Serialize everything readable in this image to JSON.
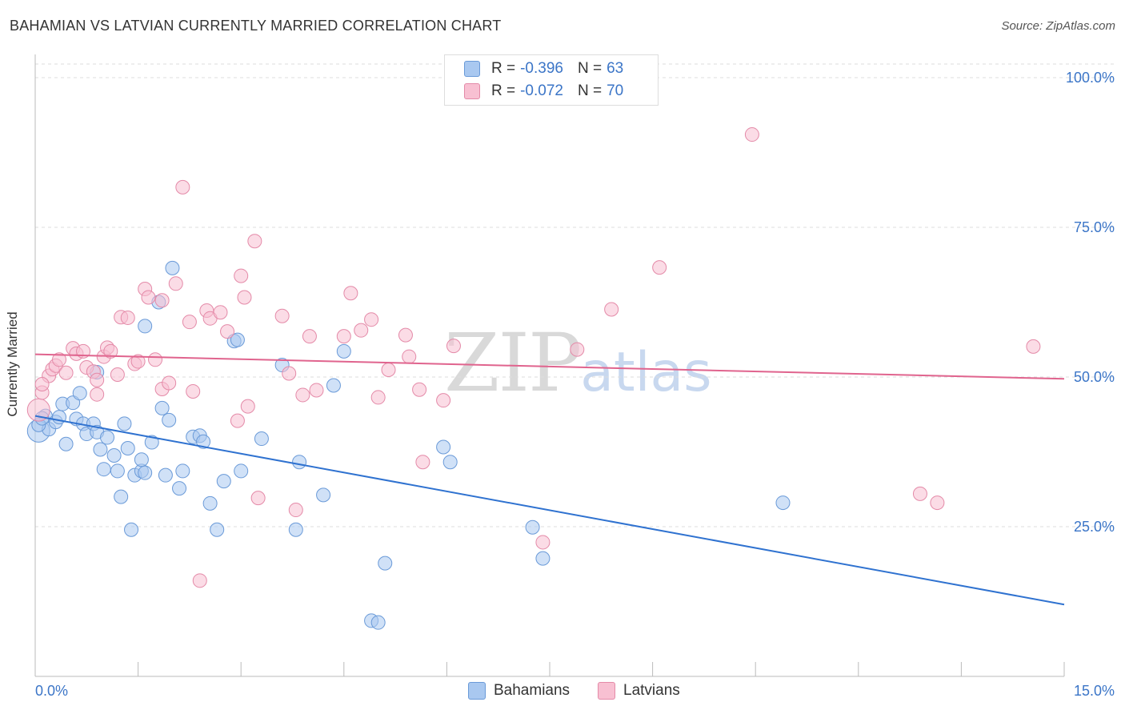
{
  "header": {
    "title": "BAHAMIAN VS LATVIAN CURRENTLY MARRIED CORRELATION CHART",
    "source": "Source: ZipAtlas.com"
  },
  "watermark": {
    "zip": "ZIP",
    "atlas": "atlas"
  },
  "legend": {
    "rows": [
      {
        "r_label": "R =",
        "r_value": "-0.396",
        "n_label": "N =",
        "n_value": "63",
        "color": "#a9c8f0",
        "border": "#6a9ad8"
      },
      {
        "r_label": "R =",
        "r_value": "-0.072",
        "n_label": "N =",
        "n_value": "70",
        "color": "#f8c0d2",
        "border": "#e48aa8"
      }
    ]
  },
  "bottom_legend": [
    {
      "label": "Bahamians",
      "color": "#a9c8f0",
      "border": "#6a9ad8"
    },
    {
      "label": "Latvians",
      "color": "#f8c0d2",
      "border": "#e48aa8"
    }
  ],
  "chart_data": {
    "type": "scatter",
    "title": "BAHAMIAN VS LATVIAN CURRENTLY MARRIED CORRELATION CHART",
    "xlabel": "",
    "ylabel": "Currently Married",
    "xlim": [
      0,
      15
    ],
    "ylim": [
      0,
      100
    ],
    "x_tick_labels": [
      "0.0%",
      "15.0%"
    ],
    "y_tick_labels": [
      "25.0%",
      "50.0%",
      "75.0%",
      "100.0%"
    ],
    "y_ticks": [
      25,
      50,
      75,
      100
    ],
    "grid": true,
    "legend_position": "top-center",
    "series": [
      {
        "name": "Bahamians",
        "color": "#6a9ad8",
        "fill": "#a9c8f0",
        "line_color": "#2f72d0",
        "trend": {
          "x": [
            0,
            15
          ],
          "y": [
            43.5,
            12.0
          ]
        },
        "points": [
          [
            0.05,
            41.0
          ],
          [
            0.15,
            43.5
          ],
          [
            0.2,
            41.3
          ],
          [
            0.3,
            42.5
          ],
          [
            0.35,
            43.3
          ],
          [
            0.45,
            38.8
          ],
          [
            0.4,
            45.5
          ],
          [
            0.55,
            45.7
          ],
          [
            0.6,
            43.0
          ],
          [
            0.65,
            47.3
          ],
          [
            0.7,
            42.2
          ],
          [
            0.75,
            40.5
          ],
          [
            0.85,
            42.2
          ],
          [
            0.9,
            40.8
          ],
          [
            0.9,
            50.8
          ],
          [
            0.95,
            37.9
          ],
          [
            1.0,
            34.6
          ],
          [
            1.05,
            39.9
          ],
          [
            1.15,
            36.9
          ],
          [
            1.2,
            34.3
          ],
          [
            1.25,
            30.0
          ],
          [
            1.3,
            42.2
          ],
          [
            1.35,
            38.1
          ],
          [
            1.4,
            24.5
          ],
          [
            1.45,
            33.6
          ],
          [
            1.55,
            34.3
          ],
          [
            1.55,
            36.2
          ],
          [
            1.6,
            34.0
          ],
          [
            1.6,
            58.5
          ],
          [
            1.7,
            39.1
          ],
          [
            1.8,
            62.5
          ],
          [
            1.85,
            44.8
          ],
          [
            1.9,
            33.6
          ],
          [
            1.95,
            42.8
          ],
          [
            2.0,
            68.2
          ],
          [
            2.1,
            31.4
          ],
          [
            2.15,
            34.3
          ],
          [
            2.3,
            40.0
          ],
          [
            2.4,
            40.2
          ],
          [
            2.45,
            39.2
          ],
          [
            2.55,
            28.9
          ],
          [
            2.65,
            24.5
          ],
          [
            2.75,
            32.6
          ],
          [
            2.9,
            56.0
          ],
          [
            2.95,
            56.2
          ],
          [
            3.0,
            34.3
          ],
          [
            3.3,
            39.7
          ],
          [
            3.6,
            52.0
          ],
          [
            3.8,
            24.5
          ],
          [
            3.85,
            35.8
          ],
          [
            4.2,
            30.3
          ],
          [
            4.35,
            48.6
          ],
          [
            4.5,
            54.3
          ],
          [
            4.9,
            9.3
          ],
          [
            5.0,
            9.0
          ],
          [
            5.1,
            18.9
          ],
          [
            5.95,
            38.3
          ],
          [
            6.05,
            35.8
          ],
          [
            7.25,
            24.9
          ],
          [
            7.4,
            19.7
          ],
          [
            10.9,
            29.0
          ],
          [
            0.05,
            42.0
          ],
          [
            0.1,
            43.1
          ]
        ]
      },
      {
        "name": "Latvians",
        "color": "#e48aa8",
        "fill": "#f8c0d2",
        "line_color": "#e0648e",
        "trend": {
          "x": [
            0,
            15
          ],
          "y": [
            53.8,
            49.7
          ]
        },
        "points": [
          [
            0.05,
            44.5
          ],
          [
            0.1,
            47.4
          ],
          [
            0.2,
            50.2
          ],
          [
            0.25,
            51.3
          ],
          [
            0.3,
            51.9
          ],
          [
            0.35,
            52.9
          ],
          [
            0.45,
            50.7
          ],
          [
            0.55,
            54.8
          ],
          [
            0.6,
            53.9
          ],
          [
            0.7,
            54.3
          ],
          [
            0.75,
            51.6
          ],
          [
            0.85,
            50.9
          ],
          [
            0.9,
            47.1
          ],
          [
            1.0,
            53.4
          ],
          [
            1.05,
            54.9
          ],
          [
            1.1,
            54.3
          ],
          [
            1.2,
            50.4
          ],
          [
            1.25,
            60.0
          ],
          [
            1.35,
            59.9
          ],
          [
            1.45,
            52.2
          ],
          [
            1.5,
            52.6
          ],
          [
            1.6,
            64.7
          ],
          [
            1.65,
            63.3
          ],
          [
            1.75,
            52.9
          ],
          [
            1.85,
            62.8
          ],
          [
            1.85,
            48.0
          ],
          [
            1.95,
            49.0
          ],
          [
            2.05,
            65.6
          ],
          [
            2.15,
            81.7
          ],
          [
            2.25,
            59.2
          ],
          [
            2.3,
            47.6
          ],
          [
            2.4,
            16.0
          ],
          [
            2.5,
            61.1
          ],
          [
            2.55,
            59.8
          ],
          [
            2.7,
            60.8
          ],
          [
            2.8,
            57.6
          ],
          [
            2.95,
            42.7
          ],
          [
            3.0,
            66.9
          ],
          [
            3.05,
            63.3
          ],
          [
            3.1,
            45.1
          ],
          [
            3.2,
            72.7
          ],
          [
            3.25,
            29.8
          ],
          [
            3.6,
            60.2
          ],
          [
            3.7,
            50.6
          ],
          [
            3.8,
            27.8
          ],
          [
            3.9,
            47.0
          ],
          [
            4.0,
            56.8
          ],
          [
            4.1,
            47.8
          ],
          [
            4.5,
            56.8
          ],
          [
            4.6,
            64.0
          ],
          [
            4.75,
            57.8
          ],
          [
            4.9,
            59.6
          ],
          [
            5.0,
            46.6
          ],
          [
            5.15,
            51.2
          ],
          [
            5.4,
            57.0
          ],
          [
            5.45,
            53.4
          ],
          [
            5.6,
            47.9
          ],
          [
            5.65,
            35.8
          ],
          [
            5.95,
            46.1
          ],
          [
            6.1,
            55.2
          ],
          [
            7.4,
            22.4
          ],
          [
            7.9,
            54.6
          ],
          [
            8.4,
            61.3
          ],
          [
            9.1,
            68.3
          ],
          [
            10.45,
            90.5
          ],
          [
            12.9,
            30.5
          ],
          [
            13.15,
            29.0
          ],
          [
            14.55,
            55.1
          ],
          [
            0.1,
            48.8
          ],
          [
            0.9,
            49.5
          ]
        ]
      }
    ]
  }
}
